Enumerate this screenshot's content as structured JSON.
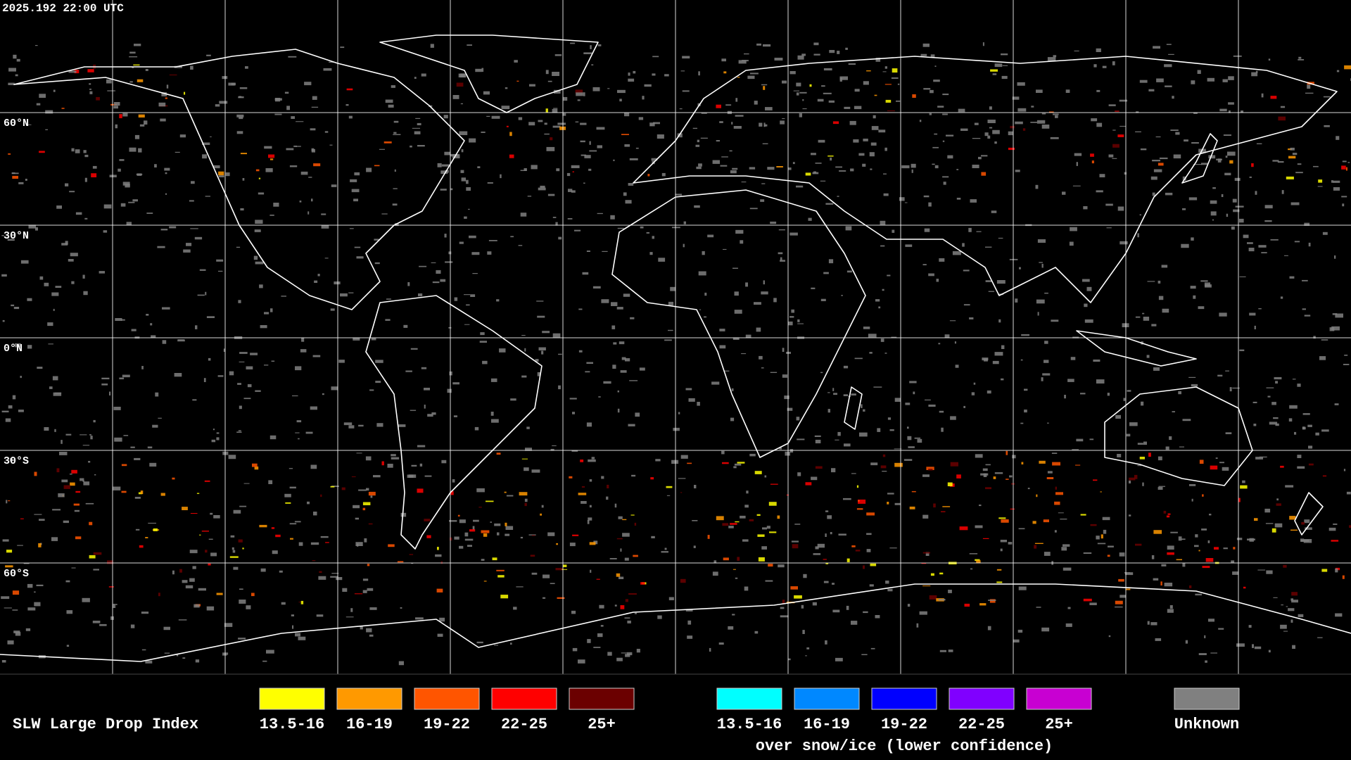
{
  "header": {
    "timestamp": "2025.192 22:00 UTC"
  },
  "map": {
    "latitude_labels": [
      "60°N",
      "30°N",
      "0°N",
      "30°S",
      "60°S"
    ]
  },
  "legend": {
    "title": "SLW Large Drop Index",
    "groups": [
      {
        "items": [
          {
            "label": "13.5-16",
            "color": "#ffff00"
          },
          {
            "label": "16-19",
            "color": "#ff9900"
          },
          {
            "label": "19-22",
            "color": "#ff5500"
          },
          {
            "label": "22-25",
            "color": "#ff0000"
          },
          {
            "label": "25+",
            "color": "#6b0000"
          }
        ]
      },
      {
        "items": [
          {
            "label": "13.5-16",
            "color": "#00ffff"
          },
          {
            "label": "16-19",
            "color": "#0088ff"
          },
          {
            "label": "19-22",
            "color": "#0000ff"
          },
          {
            "label": "22-25",
            "color": "#8000ff"
          },
          {
            "label": "25+",
            "color": "#c800d2"
          }
        ],
        "caption": "over snow/ice (lower confidence)"
      },
      {
        "items": [
          {
            "label": "Unknown",
            "color": "#808080"
          }
        ]
      }
    ]
  }
}
